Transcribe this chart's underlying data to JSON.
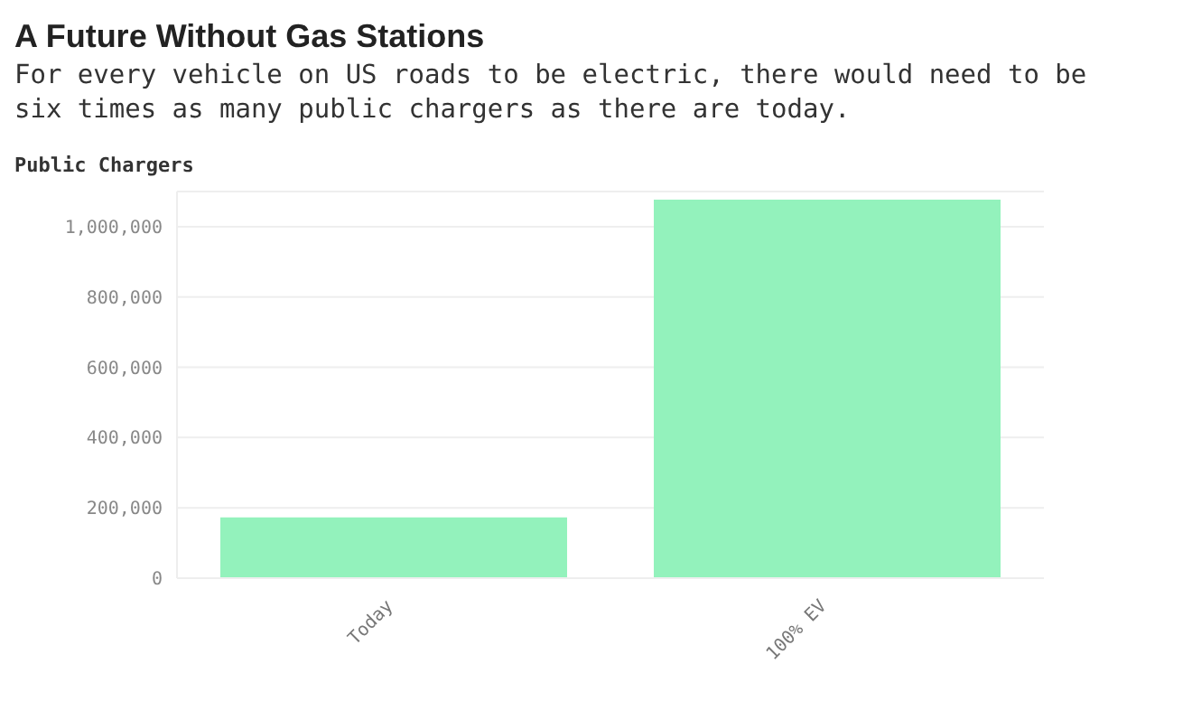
{
  "chart_data": {
    "type": "bar",
    "title": "A Future Without Gas Stations",
    "subtitle": "For every vehicle on US roads to be electric, there would need to be six times as many public chargers as there are today.",
    "ylabel": "Public Chargers",
    "categories": [
      "Today",
      "100% EV"
    ],
    "values": [
      173000,
      1077000
    ],
    "color": "#93f2bc",
    "ylim": [
      0,
      1100000
    ],
    "yticks": [
      0,
      {
        "value": 200000,
        "label": "200,000"
      },
      {
        "value": 400000,
        "label": "400,000"
      },
      {
        "value": 600000,
        "label": "600,000"
      },
      {
        "value": 800000,
        "label": "800,000"
      },
      {
        "value": 1000000,
        "label": "1,000,000"
      }
    ],
    "grid": "y"
  }
}
